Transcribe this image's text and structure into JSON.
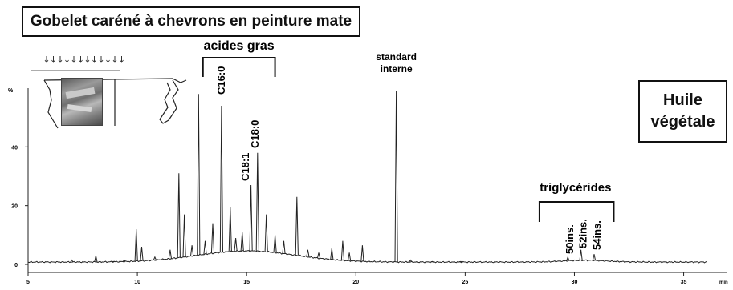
{
  "title": "Gobelet caréné à chevrons en peinture mate",
  "sample_box": [
    "Huile",
    "végétale"
  ],
  "chart_data": {
    "type": "line",
    "xlabel": "min",
    "ylabel": "%",
    "xlim": [
      5,
      37
    ],
    "ylim": [
      0,
      60
    ],
    "xticks": [
      {
        "v": 5,
        "label": "5"
      },
      {
        "v": 10,
        "label": "10"
      },
      {
        "v": 15,
        "label": "15"
      },
      {
        "v": 20,
        "label": "20"
      },
      {
        "v": 25,
        "label": "25"
      },
      {
        "v": 30,
        "label": "30"
      },
      {
        "v": 35,
        "label": "35"
      }
    ],
    "yticks": [
      {
        "v": 0,
        "label": "0"
      },
      {
        "v": 20,
        "label": "20"
      },
      {
        "v": 40,
        "label": "40"
      }
    ],
    "peaks": [
      {
        "x": 7.0,
        "y": 1.5
      },
      {
        "x": 8.1,
        "y": 3.0
      },
      {
        "x": 8.9,
        "y": 1.0
      },
      {
        "x": 9.4,
        "y": 1.5
      },
      {
        "x": 9.95,
        "y": 12.0
      },
      {
        "x": 10.2,
        "y": 6.0
      },
      {
        "x": 10.8,
        "y": 2.5
      },
      {
        "x": 11.5,
        "y": 5.0
      },
      {
        "x": 11.9,
        "y": 31.0
      },
      {
        "x": 12.15,
        "y": 17.0
      },
      {
        "x": 12.5,
        "y": 6.5
      },
      {
        "x": 12.8,
        "y": 58.0
      },
      {
        "x": 13.1,
        "y": 8.0
      },
      {
        "x": 13.45,
        "y": 14.0
      },
      {
        "x": 13.85,
        "y": 54.0
      },
      {
        "x": 14.25,
        "y": 19.5
      },
      {
        "x": 14.5,
        "y": 9.0
      },
      {
        "x": 14.8,
        "y": 11.0
      },
      {
        "x": 15.2,
        "y": 27.0
      },
      {
        "x": 15.5,
        "y": 38.0
      },
      {
        "x": 15.9,
        "y": 17.0
      },
      {
        "x": 16.3,
        "y": 10.0
      },
      {
        "x": 16.7,
        "y": 8.0
      },
      {
        "x": 17.3,
        "y": 23.0
      },
      {
        "x": 17.8,
        "y": 5.0
      },
      {
        "x": 18.3,
        "y": 4.0
      },
      {
        "x": 18.9,
        "y": 5.5
      },
      {
        "x": 19.4,
        "y": 8.0
      },
      {
        "x": 19.7,
        "y": 4.0
      },
      {
        "x": 20.3,
        "y": 6.5
      },
      {
        "x": 21.85,
        "y": 59.0
      },
      {
        "x": 22.5,
        "y": 1.5
      },
      {
        "x": 23.5,
        "y": 1.0
      },
      {
        "x": 24.8,
        "y": 1.0
      },
      {
        "x": 29.7,
        "y": 2.5
      },
      {
        "x": 30.3,
        "y": 5.0
      },
      {
        "x": 30.9,
        "y": 3.5
      }
    ],
    "annotations": {
      "fatty_acids": "acides gras",
      "c160": "C16:0",
      "c181": "C18:1",
      "c180": "C18:0",
      "standard": [
        "standard",
        "interne"
      ],
      "triglycerides": "triglycérides",
      "t50": "50ins.",
      "t52": "52ins.",
      "t54": "54ins."
    },
    "grid": false
  }
}
